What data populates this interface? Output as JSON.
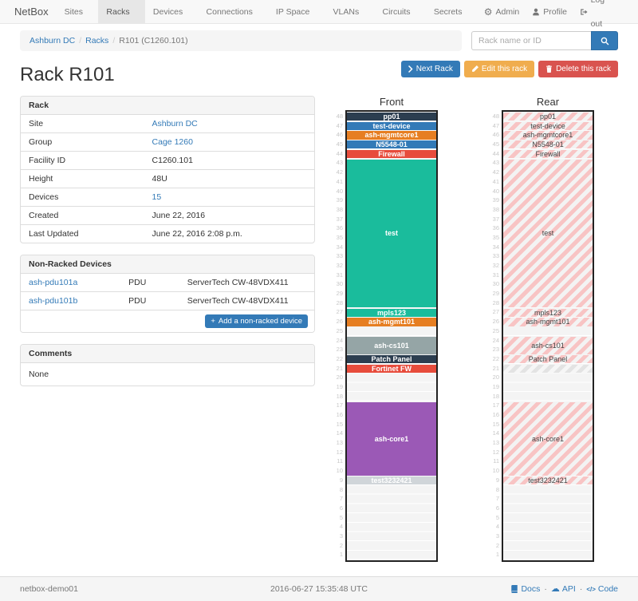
{
  "navbar": {
    "brand": "NetBox",
    "items": [
      "Sites",
      "Racks",
      "Devices",
      "Connections",
      "IP Space",
      "VLANs",
      "Circuits",
      "Secrets"
    ],
    "active": "Racks",
    "right": [
      {
        "icon": "gear-icon",
        "label": "Admin"
      },
      {
        "icon": "user-icon",
        "label": "Profile"
      },
      {
        "icon": "log-out-icon",
        "label": "Log out"
      }
    ]
  },
  "breadcrumb": {
    "site": "Ashburn DC",
    "section": "Racks",
    "current": "R101 (C1260.101)"
  },
  "search": {
    "placeholder": "Rack name or ID"
  },
  "actions": {
    "next": "Next Rack",
    "edit": "Edit this rack",
    "delete": "Delete this rack"
  },
  "page_title": "Rack R101",
  "rack_panel": {
    "title": "Rack",
    "rows": [
      {
        "label": "Site",
        "value": "Ashburn DC",
        "link": true
      },
      {
        "label": "Group",
        "value": "Cage 1260",
        "link": true
      },
      {
        "label": "Facility ID",
        "value": "C1260.101",
        "link": false
      },
      {
        "label": "Height",
        "value": "48U",
        "link": false
      },
      {
        "label": "Devices",
        "value": "15",
        "link": true
      },
      {
        "label": "Created",
        "value": "June 22, 2016",
        "link": false
      },
      {
        "label": "Last Updated",
        "value": "June 22, 2016 2:08 p.m.",
        "link": false
      }
    ]
  },
  "non_racked": {
    "title": "Non-Racked Devices",
    "rows": [
      {
        "name": "ash-pdu101a",
        "type": "PDU",
        "model": "ServerTech CW-48VDX411"
      },
      {
        "name": "ash-pdu101b",
        "type": "PDU",
        "model": "ServerTech CW-48VDX411"
      }
    ],
    "add_button": "Add a non-racked device"
  },
  "comments": {
    "title": "Comments",
    "body": "None"
  },
  "elevation": {
    "front_title": "Front",
    "rear_title": "Rear",
    "units_total": 48,
    "devices": [
      {
        "name": "pp01",
        "top_u": 48,
        "height": 1,
        "color": "#2c3e50"
      },
      {
        "name": "test-device",
        "top_u": 47,
        "height": 1,
        "color": "#337ab7"
      },
      {
        "name": "ash-mgmtcore1",
        "top_u": 46,
        "height": 1,
        "color": "#e67e22"
      },
      {
        "name": "N5548-01",
        "top_u": 45,
        "height": 1,
        "color": "#337ab7"
      },
      {
        "name": "Firewall",
        "top_u": 44,
        "height": 1,
        "color": "#e74c3c"
      },
      {
        "name": "test",
        "top_u": 43,
        "height": 16,
        "color": "#1abc9c"
      },
      {
        "name": "mpls123",
        "top_u": 27,
        "height": 1,
        "color": "#1abc9c"
      },
      {
        "name": "ash-mgmt101",
        "top_u": 26,
        "height": 1,
        "color": "#e67e22"
      },
      {
        "name": "ash-cs101",
        "top_u": 24,
        "height": 2,
        "color": "#95a5a6"
      },
      {
        "name": "Patch Panel",
        "top_u": 22,
        "height": 1,
        "color": "#2c3e50"
      },
      {
        "name": "Fortinet FW",
        "top_u": 21,
        "height": 1,
        "color": "#e74c3c",
        "rear": "ghost"
      },
      {
        "name": "ash-core1",
        "top_u": 17,
        "height": 8,
        "color": "#9b59b6"
      },
      {
        "name": "test3232421",
        "top_u": 9,
        "height": 1,
        "color": "#d0d5d9"
      }
    ]
  },
  "footer": {
    "hostname": "netbox-demo01",
    "timestamp": "2016-06-27 15:35:48 UTC",
    "links": [
      "Docs",
      "API",
      "Code"
    ]
  },
  "colors": {
    "link": "#337ab7",
    "button_primary": "#337ab7",
    "button_warning": "#f0ad4e",
    "button_danger": "#d9534f",
    "rear_stripe": "#f8c4c4"
  }
}
